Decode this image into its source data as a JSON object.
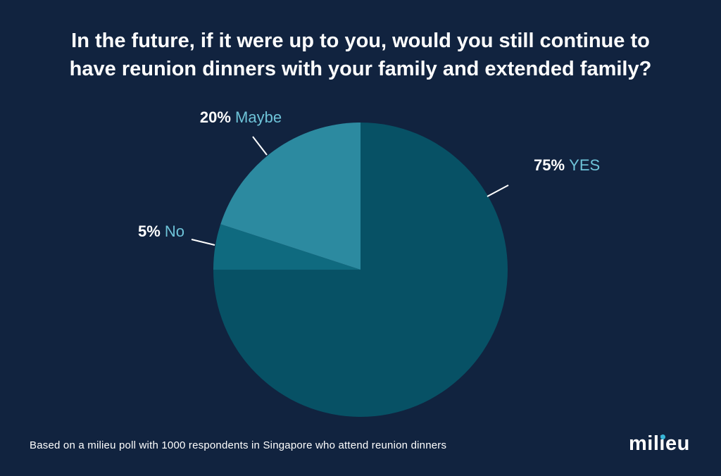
{
  "title_lines": [
    "In the future, if it were up to you, would you still continue to",
    "have reunion dinners with your family and extended family?"
  ],
  "footnote": "Based on a milieu poll with 1000 respondents in Singapore who attend reunion dinners",
  "logo": {
    "text_before": "mil",
    "text_i": "i",
    "text_after": "eu",
    "dot_color": "#38b6d8"
  },
  "colors": {
    "background": "#11233f",
    "value_text": "#ffffff",
    "category_text": "#6ec3d8"
  },
  "chart_data": {
    "type": "pie",
    "start": "12 o'clock",
    "direction": "clockwise",
    "slices": [
      {
        "label": "YES",
        "value": 75,
        "display": "75%",
        "color": "#075165"
      },
      {
        "label": "No",
        "value": 5,
        "display": "5%",
        "color": "#0f6a7f"
      },
      {
        "label": "Maybe",
        "value": 20,
        "display": "20%",
        "color": "#2c8aa0"
      }
    ]
  }
}
